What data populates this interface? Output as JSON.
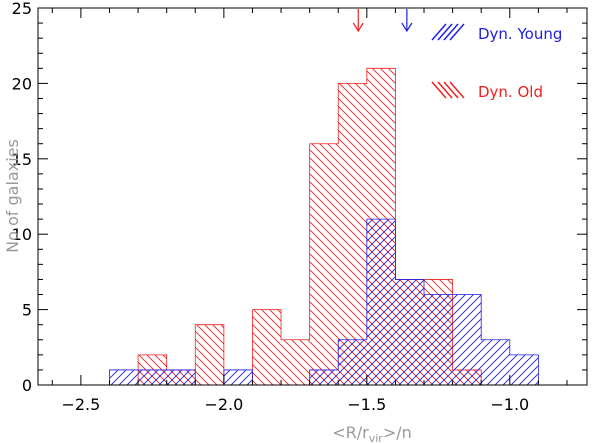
{
  "chart_data": {
    "type": "bar",
    "subtype": "histogram",
    "xlabel": "<R/r",
    "xlabel_sub": "vir",
    "xlabel_tail": ">/n",
    "ylabel": "No of galaxies",
    "xlim": [
      -2.65,
      -0.73
    ],
    "ylim": [
      0,
      25
    ],
    "xticks": [
      -2.5,
      -2.0,
      -1.5,
      -1.0
    ],
    "xtick_labels": [
      "−2.5",
      "−2.0",
      "−1.5",
      "−1.0"
    ],
    "yticks": [
      0,
      5,
      10,
      15,
      20,
      25
    ],
    "ytick_labels": [
      "0",
      "5",
      "10",
      "15",
      "20",
      "25"
    ],
    "bin_edges": [
      -2.4,
      -2.3,
      -2.2,
      -2.1,
      -2.0,
      -1.9,
      -1.8,
      -1.7,
      -1.6,
      -1.5,
      -1.4,
      -1.3,
      -1.2,
      -1.1,
      -1.0,
      -0.9
    ],
    "series": [
      {
        "name": "Dyn. Young",
        "color": "#2020e0",
        "hatch": "forward",
        "values": [
          1,
          1,
          1,
          0,
          1,
          0,
          0,
          1,
          3,
          11,
          7,
          6,
          6,
          3,
          2
        ],
        "marker_x": -1.36
      },
      {
        "name": "Dyn. Old",
        "color": "#ee2020",
        "hatch": "backward",
        "values": [
          0,
          2,
          1,
          4,
          0,
          5,
          3,
          16,
          20,
          21,
          7,
          7,
          1,
          0,
          0
        ],
        "marker_x": -1.53
      }
    ],
    "legend": {
      "placement": "top-right",
      "entries": [
        "Dyn. Young",
        "Dyn. Old"
      ]
    },
    "grid": false
  }
}
